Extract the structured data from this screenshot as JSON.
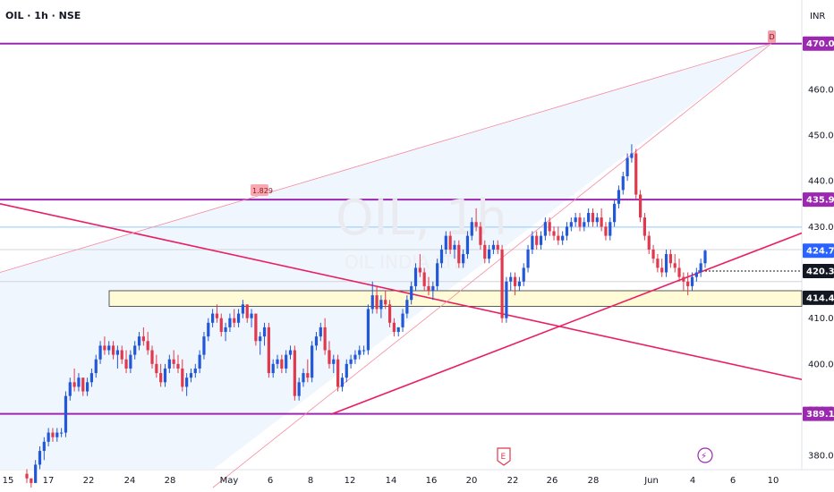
{
  "header": {
    "title": "OIL · 1h · NSE",
    "currency": "INR"
  },
  "watermark": {
    "symbol": "OIL, 1h",
    "subtitle": "OIL INDIA LTD"
  },
  "colors": {
    "up": "#2157d9",
    "down": "#e0384c",
    "horizontal_level": "#9c27b0",
    "trendline": "#e91e63",
    "fib_fill": "#eef5fd",
    "zone_fill": "#fffbd6",
    "blue_level": "#90caf9"
  },
  "chart_data": {
    "type": "candlestick",
    "symbol": "OIL",
    "interval": "1h",
    "exchange": "NSE",
    "ylim": [
      373,
      476
    ],
    "y_ticks": [
      380,
      390,
      400,
      410,
      420,
      430,
      440,
      450,
      460,
      470
    ],
    "x_ticks": [
      {
        "label": "15",
        "x": 9
      },
      {
        "label": "17",
        "x": 54
      },
      {
        "label": "22",
        "x": 99
      },
      {
        "label": "24",
        "x": 145
      },
      {
        "label": "28",
        "x": 190
      },
      {
        "label": "May",
        "x": 256
      },
      {
        "label": "6",
        "x": 302
      },
      {
        "label": "8",
        "x": 347
      },
      {
        "label": "12",
        "x": 391
      },
      {
        "label": "14",
        "x": 437
      },
      {
        "label": "16",
        "x": 482
      },
      {
        "label": "20",
        "x": 527
      },
      {
        "label": "22",
        "x": 573
      },
      {
        "label": "26",
        "x": 617
      },
      {
        "label": "28",
        "x": 663
      },
      {
        "label": "Jun",
        "x": 728
      },
      {
        "label": "4",
        "x": 774
      },
      {
        "label": "6",
        "x": 819
      },
      {
        "label": "10",
        "x": 864
      }
    ],
    "price_tags": [
      {
        "label": "470.00",
        "value": 470.0,
        "style": "purple"
      },
      {
        "label": "435.90",
        "value": 435.9,
        "style": "purple"
      },
      {
        "label": "424.75",
        "value": 424.75,
        "style": "blue"
      },
      {
        "label": "420.30",
        "value": 420.3,
        "style": "dark"
      },
      {
        "label": "414.45",
        "value": 414.45,
        "style": "dark"
      },
      {
        "label": "389.10",
        "value": 389.1,
        "style": "purple"
      }
    ],
    "horizontal_levels": [
      470.0,
      435.9,
      389.1
    ],
    "blue_level": 429.9,
    "gray_level": 425.0,
    "gray_level_2": 418.0,
    "dotted_level": 420.3,
    "zone": {
      "top": 416.0,
      "bottom": 412.6
    },
    "fib_label": "1.829",
    "event_markers": [
      "E",
      "⚡"
    ],
    "trendlines": [
      {
        "from": [
          0,
          435.0
        ],
        "to": [
          896,
          396.6
        ]
      },
      {
        "from": [
          370,
          389.0
        ],
        "to": [
          896,
          428.6
        ]
      },
      {
        "from": [
          238,
          373.0
        ],
        "to": [
          862,
          470.0
        ]
      },
      {
        "from": [
          0,
          420.0
        ],
        "to": [
          862,
          470.0
        ]
      }
    ],
    "candles": [
      [
        376,
        377,
        374,
        375
      ],
      [
        375,
        375,
        373,
        374
      ],
      [
        374,
        379,
        374,
        378
      ],
      [
        378,
        382,
        377,
        381
      ],
      [
        381,
        384,
        379,
        383
      ],
      [
        383,
        386,
        382,
        385
      ],
      [
        385,
        386,
        383,
        384
      ],
      [
        384,
        386,
        383,
        385
      ],
      [
        385,
        386,
        384,
        385
      ],
      [
        385,
        394,
        384,
        393
      ],
      [
        393,
        397,
        392,
        396
      ],
      [
        396,
        399,
        394,
        395
      ],
      [
        395,
        398,
        394,
        397
      ],
      [
        397,
        397,
        393,
        394
      ],
      [
        394,
        397,
        393,
        396
      ],
      [
        396,
        399,
        395,
        398
      ],
      [
        398,
        402,
        397,
        401
      ],
      [
        401,
        405,
        400,
        404
      ],
      [
        404,
        406,
        402,
        403
      ],
      [
        403,
        405,
        402,
        404
      ],
      [
        404,
        405,
        401,
        402
      ],
      [
        402,
        404,
        399,
        403
      ],
      [
        403,
        404,
        400,
        401
      ],
      [
        401,
        403,
        398,
        399
      ],
      [
        399,
        403,
        398,
        402
      ],
      [
        402,
        405,
        401,
        404
      ],
      [
        404,
        407,
        403,
        406
      ],
      [
        406,
        408,
        404,
        405
      ],
      [
        405,
        407,
        402,
        403
      ],
      [
        403,
        404,
        399,
        400
      ],
      [
        400,
        402,
        397,
        398
      ],
      [
        398,
        400,
        395,
        396
      ],
      [
        396,
        400,
        395,
        399
      ],
      [
        399,
        402,
        398,
        401
      ],
      [
        401,
        403,
        399,
        400
      ],
      [
        400,
        402,
        398,
        399
      ],
      [
        399,
        401,
        394,
        395
      ],
      [
        395,
        398,
        393,
        397
      ],
      [
        397,
        399,
        396,
        398
      ],
      [
        398,
        400,
        397,
        399
      ],
      [
        399,
        403,
        398,
        402
      ],
      [
        402,
        407,
        401,
        406
      ],
      [
        406,
        410,
        405,
        409
      ],
      [
        409,
        412,
        408,
        411
      ],
      [
        411,
        413,
        409,
        410
      ],
      [
        410,
        411,
        406,
        407
      ],
      [
        407,
        409,
        405,
        408
      ],
      [
        408,
        411,
        407,
        410
      ],
      [
        410,
        412,
        408,
        409
      ],
      [
        409,
        412,
        408,
        411
      ],
      [
        411,
        414,
        410,
        413
      ],
      [
        413,
        413,
        409,
        410
      ],
      [
        410,
        412,
        408,
        411
      ],
      [
        411,
        411,
        404,
        405
      ],
      [
        405,
        407,
        402,
        406
      ],
      [
        406,
        409,
        404,
        408
      ],
      [
        408,
        409,
        397,
        398
      ],
      [
        398,
        401,
        397,
        400
      ],
      [
        400,
        402,
        399,
        401
      ],
      [
        401,
        402,
        398,
        399
      ],
      [
        399,
        403,
        398,
        402
      ],
      [
        402,
        404,
        401,
        403
      ],
      [
        403,
        404,
        392,
        393
      ],
      [
        393,
        397,
        392,
        396
      ],
      [
        396,
        399,
        395,
        398
      ],
      [
        398,
        401,
        396,
        397
      ],
      [
        397,
        405,
        396,
        404
      ],
      [
        404,
        407,
        403,
        406
      ],
      [
        406,
        409,
        405,
        408
      ],
      [
        408,
        410,
        402,
        403
      ],
      [
        403,
        405,
        399,
        400
      ],
      [
        400,
        402,
        398,
        401
      ],
      [
        401,
        402,
        394,
        395
      ],
      [
        395,
        398,
        394,
        397
      ],
      [
        397,
        401,
        396,
        400
      ],
      [
        400,
        402,
        399,
        401
      ],
      [
        401,
        403,
        400,
        402
      ],
      [
        402,
        404,
        401,
        403
      ],
      [
        403,
        404,
        402,
        403
      ],
      [
        403,
        413,
        402,
        412
      ],
      [
        412,
        418,
        411,
        415
      ],
      [
        415,
        417,
        411,
        412
      ],
      [
        412,
        415,
        410,
        414
      ],
      [
        414,
        416,
        412,
        413
      ],
      [
        413,
        414,
        408,
        409
      ],
      [
        409,
        410,
        406,
        407
      ],
      [
        407,
        408,
        406,
        408
      ],
      [
        408,
        412,
        407,
        411
      ],
      [
        411,
        415,
        410,
        414
      ],
      [
        414,
        418,
        413,
        417
      ],
      [
        417,
        422,
        416,
        421
      ],
      [
        421,
        424,
        419,
        420
      ],
      [
        420,
        421,
        416,
        417
      ],
      [
        417,
        419,
        415,
        416
      ],
      [
        416,
        418,
        414,
        417
      ],
      [
        417,
        423,
        416,
        422
      ],
      [
        422,
        426,
        421,
        425
      ],
      [
        425,
        429,
        424,
        428
      ],
      [
        428,
        429,
        424,
        425
      ],
      [
        425,
        427,
        423,
        426
      ],
      [
        426,
        427,
        421,
        422
      ],
      [
        422,
        425,
        421,
        424
      ],
      [
        424,
        429,
        423,
        428
      ],
      [
        428,
        432,
        427,
        431
      ],
      [
        431,
        434,
        429,
        430
      ],
      [
        430,
        431,
        425,
        426
      ],
      [
        426,
        427,
        422,
        423
      ],
      [
        423,
        426,
        422,
        425
      ],
      [
        425,
        427,
        424,
        426
      ],
      [
        426,
        427,
        424,
        425
      ],
      [
        425,
        426,
        409,
        410
      ],
      [
        410,
        419,
        409,
        418
      ],
      [
        418,
        420,
        416,
        419
      ],
      [
        419,
        420,
        415,
        417
      ],
      [
        417,
        419,
        416,
        418
      ],
      [
        418,
        422,
        417,
        421
      ],
      [
        421,
        426,
        420,
        425
      ],
      [
        425,
        429,
        424,
        428
      ],
      [
        428,
        429,
        425,
        426
      ],
      [
        426,
        429,
        425,
        428
      ],
      [
        428,
        432,
        427,
        431
      ],
      [
        431,
        432,
        428,
        429
      ],
      [
        429,
        430,
        427,
        428
      ],
      [
        428,
        430,
        426,
        427
      ],
      [
        427,
        429,
        426,
        428
      ],
      [
        428,
        431,
        427,
        430
      ],
      [
        430,
        432,
        429,
        431
      ],
      [
        431,
        433,
        430,
        432
      ],
      [
        432,
        433,
        429,
        430
      ],
      [
        430,
        432,
        429,
        431
      ],
      [
        431,
        434,
        430,
        433
      ],
      [
        433,
        434,
        430,
        431
      ],
      [
        431,
        433,
        430,
        432
      ],
      [
        432,
        434,
        429,
        430
      ],
      [
        430,
        431,
        427,
        428
      ],
      [
        428,
        432,
        427,
        431
      ],
      [
        431,
        436,
        430,
        435
      ],
      [
        435,
        439,
        434,
        438
      ],
      [
        438,
        442,
        437,
        441
      ],
      [
        441,
        446,
        440,
        445
      ],
      [
        445,
        448,
        444,
        446
      ],
      [
        446,
        447,
        436,
        437
      ],
      [
        437,
        438,
        431,
        432
      ],
      [
        432,
        433,
        427,
        428
      ],
      [
        428,
        429,
        424,
        425
      ],
      [
        425,
        426,
        422,
        423
      ],
      [
        423,
        424,
        420,
        421
      ],
      [
        421,
        423,
        419,
        420
      ],
      [
        420,
        425,
        419,
        424
      ],
      [
        424,
        425,
        421,
        422
      ],
      [
        422,
        424,
        420,
        421
      ],
      [
        421,
        423,
        418,
        419
      ],
      [
        419,
        420,
        416,
        418
      ],
      [
        418,
        420,
        415,
        417
      ],
      [
        417,
        420,
        416,
        419
      ],
      [
        419,
        421,
        418,
        420
      ],
      [
        420,
        423,
        419,
        422
      ],
      [
        422,
        425,
        421,
        424.75
      ]
    ]
  }
}
